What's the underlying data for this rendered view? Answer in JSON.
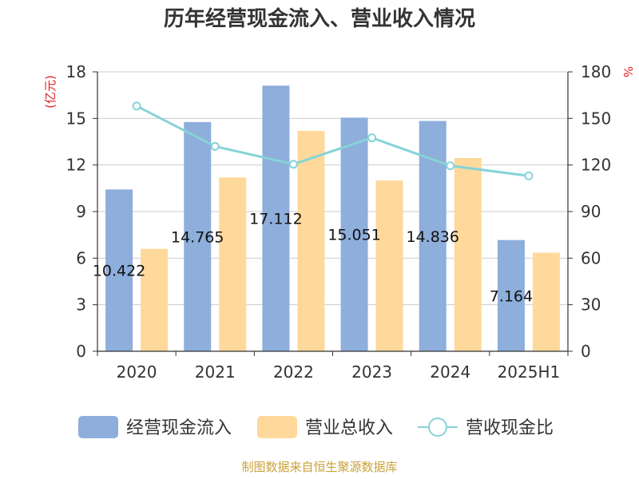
{
  "title": "历年经营现金流入、营业收入情况",
  "source": "制图数据来自恒生聚源数据库",
  "chart_data": {
    "type": "bar",
    "title": "历年经营现金流入、营业收入情况",
    "categories": [
      "2020",
      "2021",
      "2022",
      "2023",
      "2024",
      "2025H1"
    ],
    "left_axis": {
      "unit": "(亿元)",
      "ylim": [
        0,
        18
      ],
      "ticks": [
        "0",
        "3",
        "6",
        "9",
        "12",
        "15",
        "18"
      ]
    },
    "right_axis": {
      "unit": "%",
      "ylim": [
        0,
        180
      ],
      "ticks": [
        "0",
        "30",
        "60",
        "90",
        "120",
        "150",
        "180"
      ]
    },
    "grid": true,
    "legend_position": "bottom",
    "series": [
      {
        "name": "经营现金流入",
        "type": "bar",
        "axis": "left",
        "color": "#8eaedb",
        "values": [
          10.422,
          14.765,
          17.112,
          15.051,
          14.836,
          7.164
        ],
        "labels": [
          "10.422",
          "14.765",
          "17.112",
          "15.051",
          "14.836",
          "7.164"
        ]
      },
      {
        "name": "营业总收入",
        "type": "bar",
        "axis": "left",
        "color": "#fed99b",
        "values": [
          6.6,
          11.2,
          14.2,
          11.0,
          12.45,
          6.35
        ]
      },
      {
        "name": "营收现金比",
        "type": "line",
        "axis": "right",
        "color": "#86d3d8",
        "values": [
          158,
          132,
          120.5,
          137.5,
          119.5,
          113
        ]
      }
    ]
  }
}
